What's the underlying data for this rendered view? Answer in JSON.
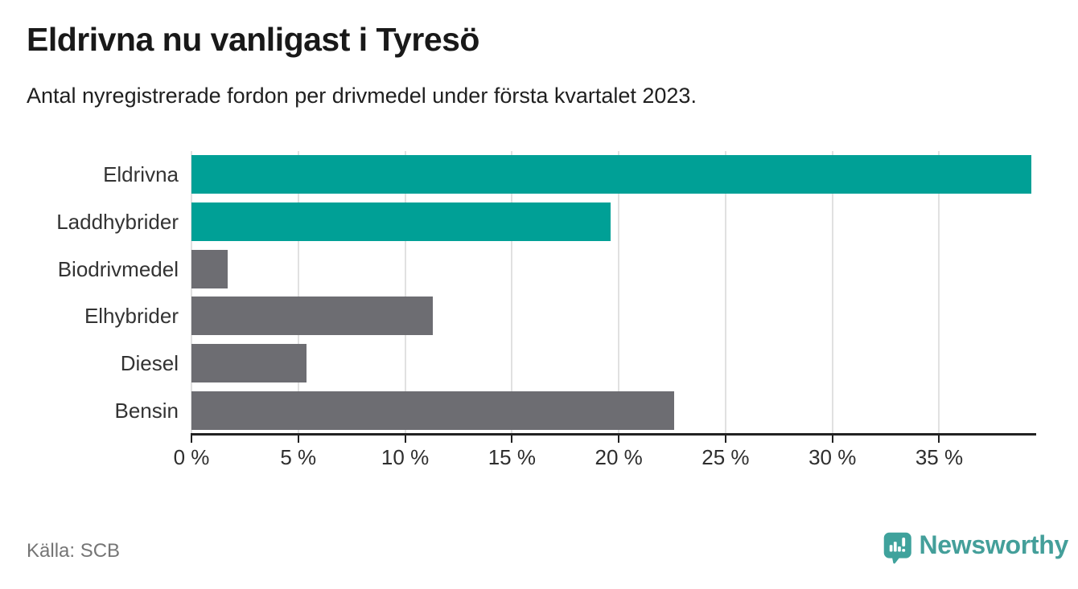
{
  "header": {
    "title": "Eldrivna nu vanligast i Tyresö",
    "subtitle": "Antal nyregistrerade fordon per drivmedel under första kvartalet 2023."
  },
  "chart_data": {
    "type": "bar",
    "orientation": "horizontal",
    "title": "Eldrivna nu vanligast i Tyresö",
    "subtitle": "Antal nyregistrerade fordon per drivmedel under första kvartalet 2023.",
    "categories": [
      "Eldrivna",
      "Laddhybrider",
      "Biodrivmedel",
      "Elhybrider",
      "Diesel",
      "Bensin"
    ],
    "values": [
      39.3,
      19.6,
      1.7,
      11.3,
      5.4,
      22.6
    ],
    "unit": "%",
    "xlim": [
      0,
      39.5
    ],
    "xticks": [
      0,
      5,
      10,
      15,
      20,
      25,
      30,
      35
    ],
    "xtick_labels": [
      "0 %",
      "5 %",
      "10 %",
      "15 %",
      "20 %",
      "25 %",
      "30 %",
      "35 %"
    ],
    "bar_colors": [
      "#00a096",
      "#00a096",
      "#6d6d72",
      "#6d6d72",
      "#6d6d72",
      "#6d6d72"
    ],
    "highlight_color": "#00a096",
    "default_color": "#6d6d72",
    "grid": true,
    "gridline_color": "#e1e1e1",
    "legend": "none"
  },
  "footer": {
    "source": "Källa: SCB",
    "brand": "Newsworthy",
    "brand_color": "#449f9a"
  }
}
